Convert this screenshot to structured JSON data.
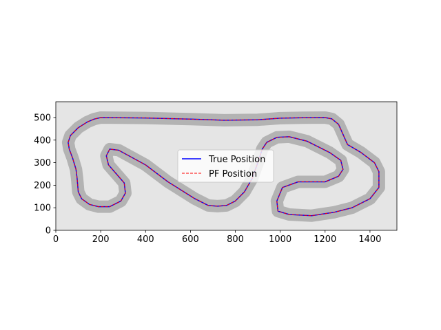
{
  "chart_data": {
    "type": "line",
    "title": "",
    "xlabel": "",
    "ylabel": "",
    "xlim": [
      0,
      1520
    ],
    "ylim": [
      0,
      570
    ],
    "xticks": [
      0,
      200,
      400,
      600,
      800,
      1000,
      1200,
      1400
    ],
    "yticks": [
      0,
      100,
      200,
      300,
      400,
      500
    ],
    "grid": false,
    "background": "#e5e5e5",
    "track_color": "#b3b3b3",
    "legend": {
      "position": "center",
      "entries": [
        {
          "label": "True Position",
          "color": "#0000ff",
          "style": "solid"
        },
        {
          "label": "PF Position",
          "color": "#ff0000",
          "style": "dashed"
        }
      ]
    },
    "series": [
      {
        "name": "True Position",
        "color": "#0000ff",
        "style": "solid",
        "x": [
          200,
          400,
          600,
          750,
          900,
          1000,
          1100,
          1200,
          1230,
          1260,
          1300,
          1360,
          1420,
          1440,
          1440,
          1400,
          1320,
          1240,
          1140,
          1040,
          990,
          985,
          1010,
          1080,
          1200,
          1260,
          1280,
          1270,
          1220,
          1120,
          1040,
          985,
          940,
          920,
          900,
          875,
          840,
          800,
          760,
          720,
          680,
          620,
          500,
          400,
          280,
          240,
          225,
          235,
          270,
          305,
          310,
          290,
          240,
          190,
          150,
          115,
          100,
          95,
          90,
          75,
          60,
          55,
          65,
          100,
          140,
          170,
          200
        ],
        "y": [
          500,
          498,
          493,
          488,
          490,
          497,
          499,
          500,
          494,
          470,
          380,
          345,
          300,
          260,
          190,
          140,
          100,
          80,
          65,
          70,
          85,
          130,
          190,
          215,
          215,
          240,
          270,
          310,
          345,
          395,
          415,
          412,
          390,
          360,
          300,
          230,
          170,
          130,
          110,
          107,
          110,
          140,
          215,
          290,
          355,
          360,
          330,
          290,
          250,
          210,
          165,
          130,
          105,
          105,
          115,
          140,
          170,
          230,
          270,
          320,
          360,
          390,
          420,
          455,
          480,
          493,
          500
        ]
      },
      {
        "name": "PF Position",
        "color": "#ff0000",
        "style": "dashed",
        "x": [
          200,
          400,
          600,
          750,
          900,
          1000,
          1100,
          1200,
          1230,
          1260,
          1300,
          1360,
          1420,
          1440,
          1440,
          1400,
          1320,
          1240,
          1140,
          1040,
          990,
          985,
          1010,
          1080,
          1200,
          1260,
          1280,
          1270,
          1220,
          1120,
          1040,
          985,
          940,
          920,
          900,
          875,
          840,
          800,
          760,
          720,
          680,
          620,
          500,
          400,
          280,
          240,
          225,
          235,
          270,
          305,
          310,
          290,
          240,
          190,
          150,
          115,
          100,
          95,
          90,
          75,
          60,
          55,
          65,
          100,
          140,
          170,
          200
        ],
        "y": [
          500,
          498,
          493,
          488,
          490,
          497,
          499,
          500,
          494,
          470,
          380,
          345,
          300,
          260,
          190,
          140,
          100,
          80,
          65,
          70,
          85,
          130,
          190,
          215,
          215,
          240,
          270,
          310,
          345,
          395,
          415,
          412,
          390,
          360,
          300,
          230,
          170,
          130,
          110,
          107,
          110,
          140,
          215,
          290,
          355,
          360,
          330,
          290,
          250,
          210,
          165,
          130,
          105,
          105,
          115,
          140,
          170,
          230,
          270,
          320,
          360,
          390,
          420,
          455,
          480,
          493,
          500
        ]
      }
    ]
  }
}
